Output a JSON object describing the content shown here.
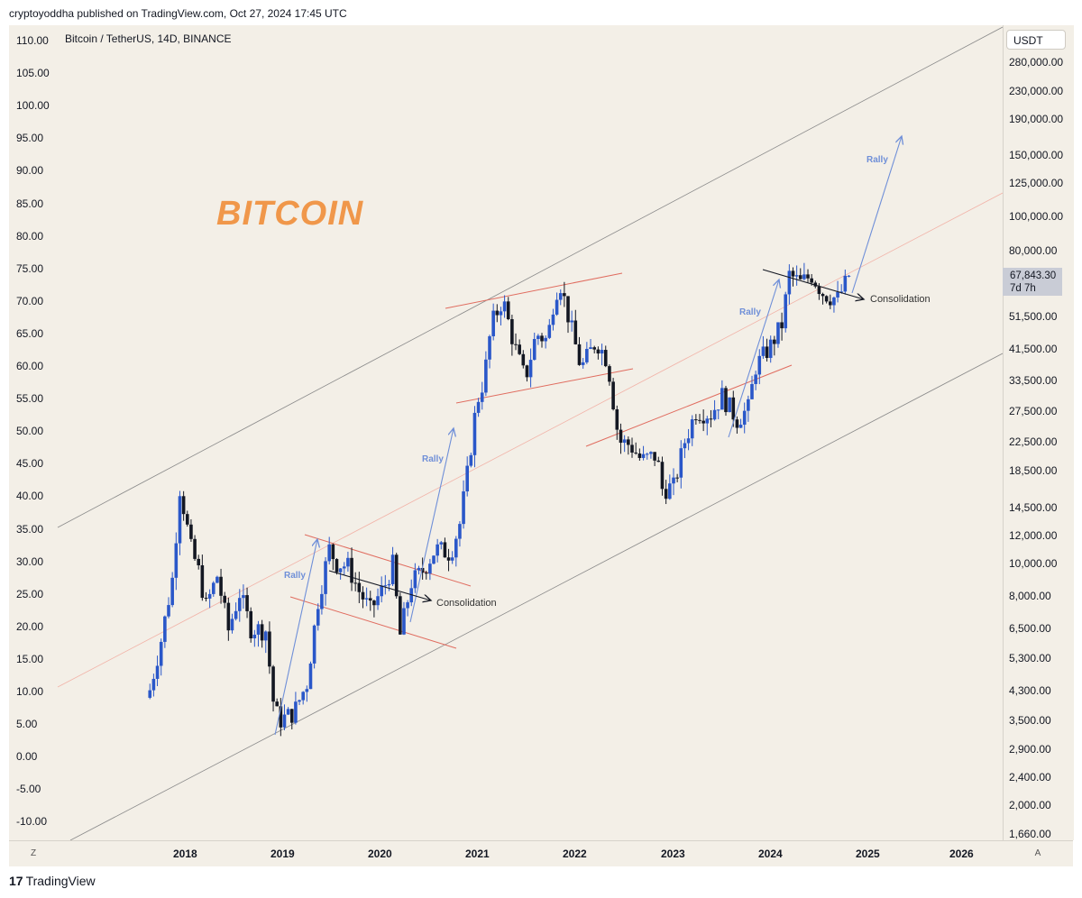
{
  "header": {
    "published": "cryptoyoddha published on TradingView.com, Oct 27, 2024 17:45 UTC"
  },
  "symbol": {
    "line": "Bitcoin / TetherUS, 14D, BINANCE",
    "currency": "USDT"
  },
  "title": "BITCOIN",
  "price_tag": {
    "price": "67,843.30",
    "countdown": "7d 7h"
  },
  "footer": {
    "brand": "TradingView",
    "mark": "17"
  },
  "axis_buttons": {
    "left": "Z",
    "right": "A"
  },
  "colors": {
    "up": "#2a57c9",
    "down": "#131722",
    "rally": "#6f8fd8",
    "channel": "#8a8a8a",
    "pattern": "#e06c5f",
    "title": "#f0974a",
    "background": "#f3efe7"
  },
  "left_ticks": [
    "110.00",
    "105.00",
    "100.00",
    "95.00",
    "90.00",
    "85.00",
    "80.00",
    "75.00",
    "70.00",
    "65.00",
    "60.00",
    "55.00",
    "50.00",
    "45.00",
    "40.00",
    "35.00",
    "30.00",
    "25.00",
    "20.00",
    "15.00",
    "10.00",
    "5.00",
    "0.00",
    "-5.00",
    "-10.00"
  ],
  "right_ticks": [
    "280,000.00",
    "230,000.00",
    "190,000.00",
    "150,000.00",
    "125,000.00",
    "100,000.00",
    "80,000.00",
    "51,500.00",
    "41,500.00",
    "33,500.00",
    "27,500.00",
    "22,500.00",
    "18,500.00",
    "14,500.00",
    "12,000.00",
    "10,000.00",
    "8,000.00",
    "6,500.00",
    "5,300.00",
    "4,300.00",
    "3,500.00",
    "2,900.00",
    "2,400.00",
    "2,000.00",
    "1,660.00"
  ],
  "annotations": {
    "rally": "Rally",
    "consolidation": "Consolidation"
  },
  "chart_data": {
    "type": "candlestick",
    "symbol": "Bitcoin / TetherUS",
    "interval": "14D",
    "exchange": "BINANCE",
    "x_ticks": [
      "2018",
      "2019",
      "2020",
      "2021",
      "2022",
      "2023",
      "2024",
      "2025",
      "2026"
    ],
    "scale": "log",
    "ylim": [
      1660,
      280000
    ],
    "close_path": [
      [
        "2017-08-20",
        4300
      ],
      [
        "2017-10-01",
        6000
      ],
      [
        "2017-11-12",
        9000
      ],
      [
        "2017-12-10",
        16500
      ],
      [
        "2017-12-24",
        14500
      ],
      [
        "2018-01-21",
        11000
      ],
      [
        "2018-02-18",
        9500
      ],
      [
        "2018-03-18",
        7500
      ],
      [
        "2018-04-29",
        9200
      ],
      [
        "2018-06-10",
        6400
      ],
      [
        "2018-07-22",
        8200
      ],
      [
        "2018-09-02",
        6500
      ],
      [
        "2018-10-28",
        6400
      ],
      [
        "2018-11-25",
        4000
      ],
      [
        "2018-12-16",
        3500
      ],
      [
        "2019-02-10",
        3700
      ],
      [
        "2019-03-31",
        4500
      ],
      [
        "2019-05-12",
        7800
      ],
      [
        "2019-06-23",
        11000
      ],
      [
        "2019-07-21",
        10000
      ],
      [
        "2019-09-01",
        9800
      ],
      [
        "2019-10-13",
        8300
      ],
      [
        "2019-11-24",
        7300
      ],
      [
        "2020-01-19",
        8700
      ],
      [
        "2020-02-16",
        9900
      ],
      [
        "2020-03-15",
        6200
      ],
      [
        "2020-04-26",
        8800
      ],
      [
        "2020-06-07",
        9500
      ],
      [
        "2020-07-26",
        11000
      ],
      [
        "2020-09-20",
        10700
      ],
      [
        "2020-10-25",
        13000
      ],
      [
        "2020-11-22",
        18000
      ],
      [
        "2020-12-27",
        29000
      ],
      [
        "2021-01-24",
        34000
      ],
      [
        "2021-02-21",
        49000
      ],
      [
        "2021-04-04",
        58000
      ],
      [
        "2021-05-16",
        43000
      ],
      [
        "2021-06-27",
        34000
      ],
      [
        "2021-08-08",
        46000
      ],
      [
        "2021-09-19",
        44000
      ],
      [
        "2021-10-17",
        61000
      ],
      [
        "2021-11-07",
        64000
      ],
      [
        "2021-12-19",
        47000
      ],
      [
        "2022-01-23",
        36500
      ],
      [
        "2022-03-20",
        44000
      ],
      [
        "2022-05-01",
        38500
      ],
      [
        "2022-06-12",
        22500
      ],
      [
        "2022-07-24",
        22000
      ],
      [
        "2022-09-04",
        19800
      ],
      [
        "2022-10-30",
        20500
      ],
      [
        "2022-11-20",
        16400
      ],
      [
        "2023-01-01",
        16600
      ],
      [
        "2023-02-12",
        22500
      ],
      [
        "2023-03-26",
        27500
      ],
      [
        "2023-05-21",
        27000
      ],
      [
        "2023-07-02",
        30500
      ],
      [
        "2023-08-27",
        26000
      ],
      [
        "2023-10-08",
        28000
      ],
      [
        "2023-11-05",
        37000
      ],
      [
        "2023-12-31",
        42500
      ],
      [
        "2024-02-11",
        49000
      ],
      [
        "2024-03-10",
        68000
      ],
      [
        "2024-04-21",
        64500
      ],
      [
        "2024-06-02",
        68000
      ],
      [
        "2024-07-14",
        60500
      ],
      [
        "2024-08-11",
        59000
      ],
      [
        "2024-09-08",
        58000
      ],
      [
        "2024-10-06",
        64000
      ],
      [
        "2024-10-20",
        67843.3
      ]
    ],
    "last_price": 67843.3
  }
}
